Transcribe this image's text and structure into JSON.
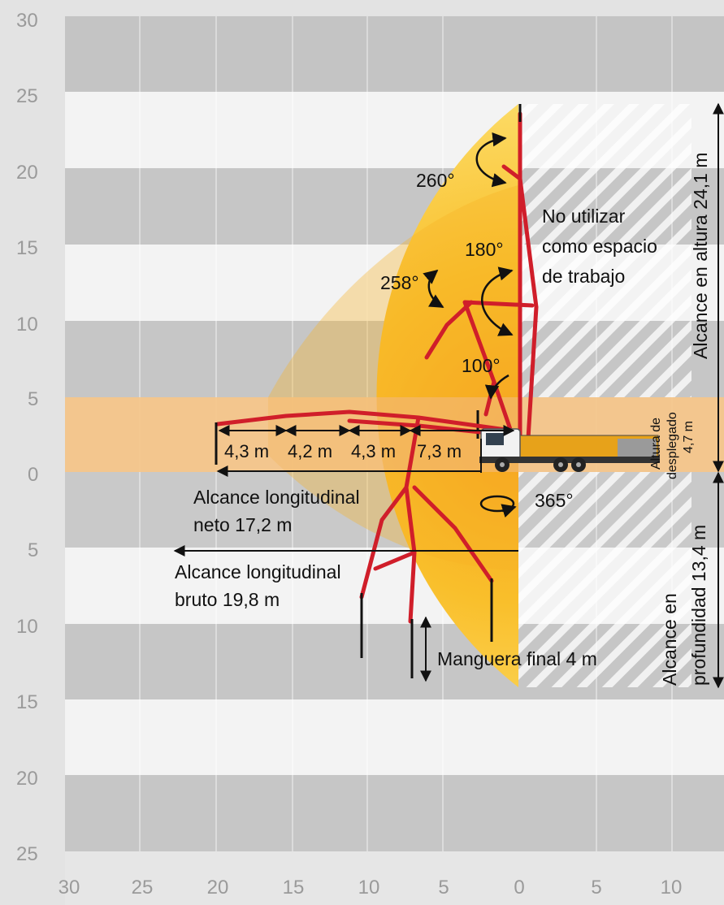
{
  "axes": {
    "y_ticks_upper": [
      "30",
      "25",
      "20",
      "15",
      "10",
      "5",
      "0"
    ],
    "y_ticks_lower": [
      "5",
      "10",
      "15",
      "20",
      "25"
    ],
    "x_ticks": [
      "30",
      "25",
      "20",
      "15",
      "10",
      "5",
      "0",
      "5",
      "10"
    ]
  },
  "angles": {
    "a260": "260°",
    "a180": "180°",
    "a258": "258°",
    "a100": "100°",
    "a365": "365°"
  },
  "no_work_zone": {
    "line1": "No utilizar",
    "line2": "como espacio",
    "line3": "de trabajo"
  },
  "segments": [
    "4,3 m",
    "4,2 m",
    "4,3 m",
    "7,3 m"
  ],
  "reach_net": {
    "line1": "Alcance longitudinal",
    "line2": "neto 17,2 m"
  },
  "reach_gross": {
    "line1": "Alcance longitudinal",
    "line2": "bruto 19,8 m"
  },
  "end_hose": "Manguera final 4 m",
  "height_reach": "Alcance en altura 24,1 m",
  "unfold_height": {
    "line1": "Altura de",
    "line2": "desplegado",
    "line3": "4,7 m"
  },
  "depth_reach": {
    "line1": "Alcance en",
    "line2": "profundidad 13,4 m"
  },
  "colors": {
    "boom": "#d01e2a",
    "reach_yellow": "#fcd335",
    "reach_orange": "#f6a723",
    "unfold_band": "#f3b76c",
    "truck_cab": "#f2f2f2",
    "truck_body": "#e7a21a"
  }
}
